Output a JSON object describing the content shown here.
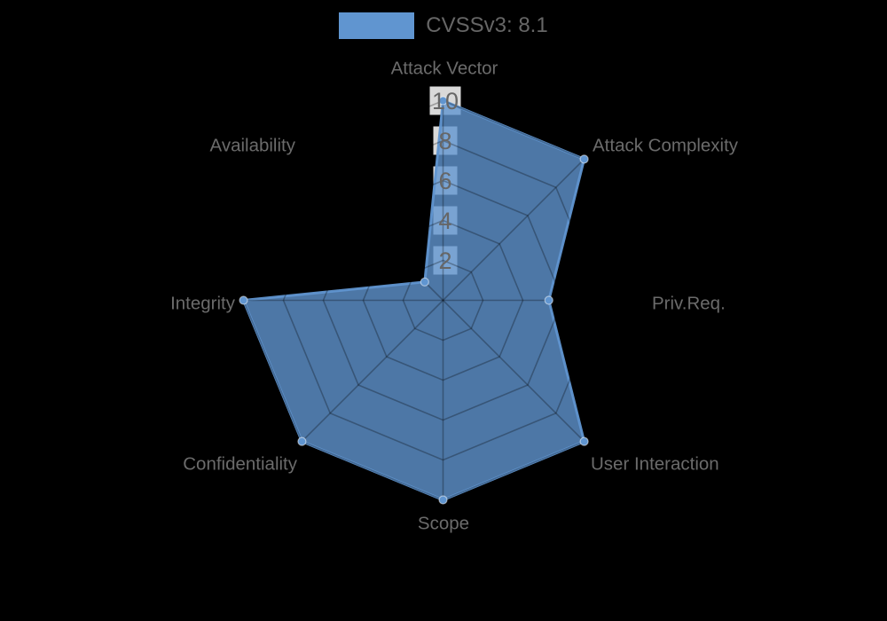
{
  "chart_data": {
    "type": "radar",
    "categories": [
      "Attack Vector",
      "Attack Complexity",
      "Priv.Req.",
      "User Interaction",
      "Scope",
      "Confidentiality",
      "Integrity",
      "Availability"
    ],
    "series": [
      {
        "name": "CVSSv3: 8.1",
        "values": [
          10,
          10,
          5.3,
          10,
          10,
          10,
          10,
          1.3
        ]
      }
    ],
    "rmin": 0,
    "rmax": 10,
    "ticks": [
      2,
      4,
      6,
      8,
      10
    ],
    "tick_labels": [
      "2",
      "4",
      "6",
      "8",
      "10"
    ],
    "start_angle_deg": 90,
    "direction": "clockwise",
    "grid_shape": "polygon",
    "grid_levels": 5,
    "legend_position": "top-center",
    "colors": {
      "series": "#6095D0",
      "series_fill_opacity": 0.8,
      "grid_line": "rgba(0,0,0,0.28)",
      "tick_backdrop": "rgba(255,255,255,0.85)",
      "tick_text": "#666666",
      "axis_label_text": "#6b6b6b",
      "legend_text": "#666666",
      "background": "#000000"
    }
  }
}
